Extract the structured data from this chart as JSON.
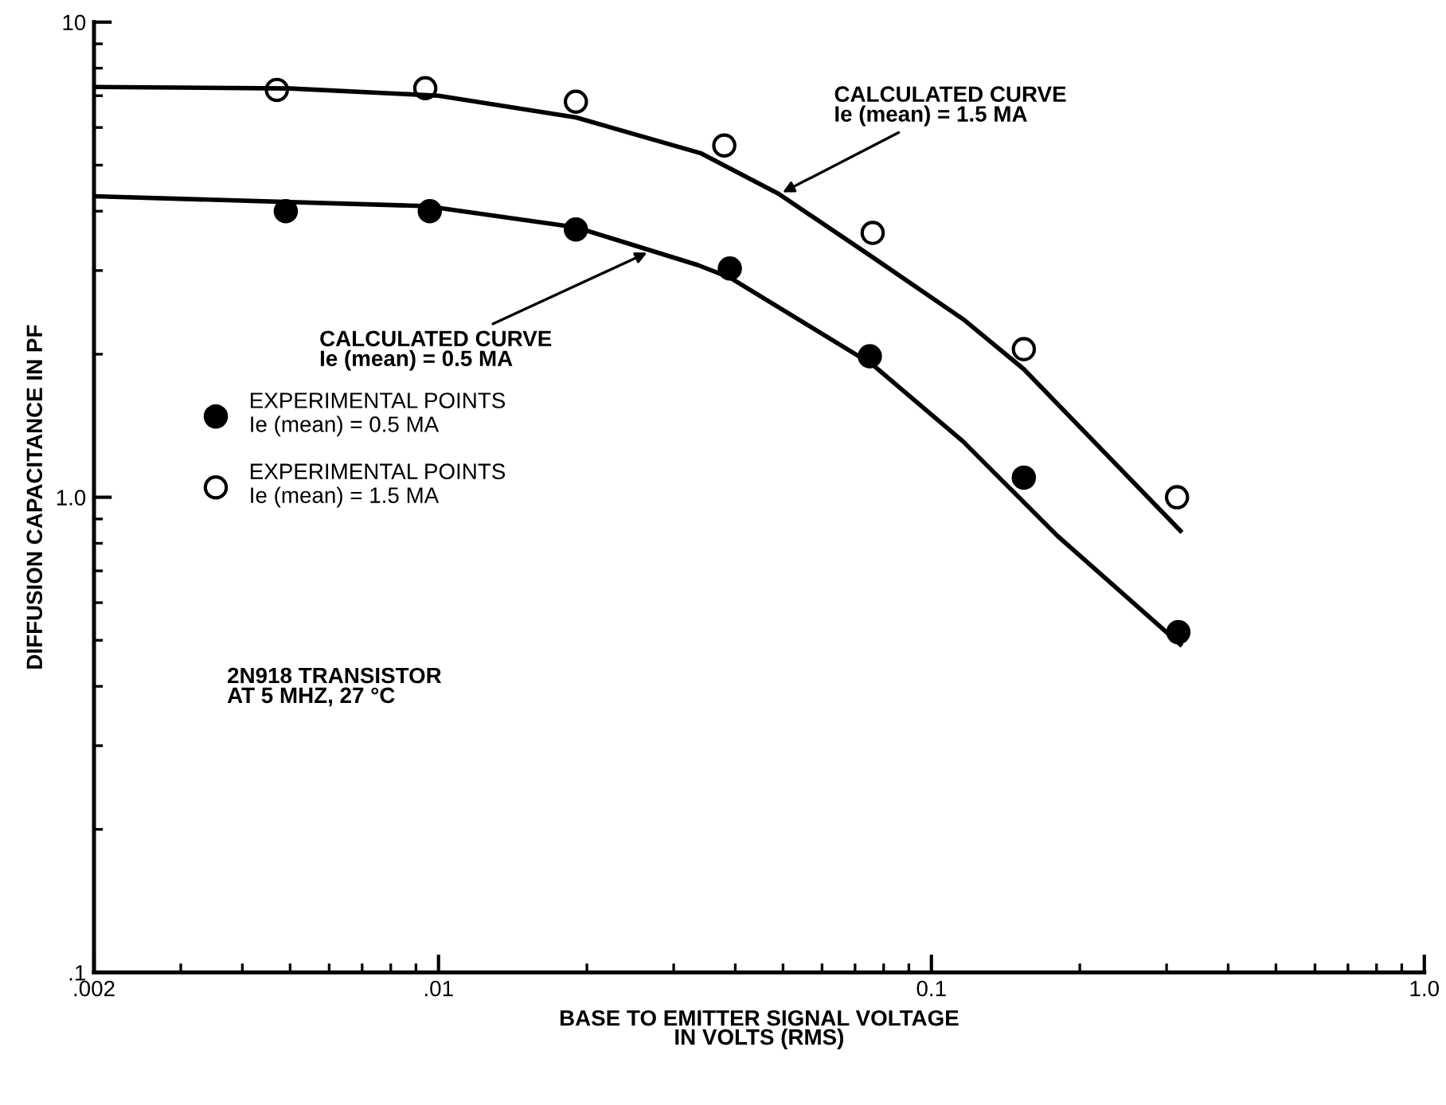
{
  "chart_data": {
    "type": "scatter",
    "xlabel": "BASE TO EMITTER SIGNAL VOLTAGE\nIN VOLTS (RMS)",
    "ylabel": "DIFFUSION CAPACITANCE IN PF",
    "log": "xy",
    "xlim": [
      0.002,
      1.0
    ],
    "ylim": [
      0.1,
      10
    ],
    "xticks": [
      {
        "value": 0.002,
        "label": ".002"
      },
      {
        "value": 0.01,
        "label": ".01"
      },
      {
        "value": 0.1,
        "label": "0.1"
      },
      {
        "value": 1.0,
        "label": "1.0"
      }
    ],
    "yticks": [
      {
        "value": 0.1,
        "label": ".1"
      },
      {
        "value": 1,
        "label": "1.0"
      },
      {
        "value": 10,
        "label": "10"
      }
    ],
    "grid": false,
    "legend": "left",
    "series": [
      {
        "type": "line",
        "color": "#000000",
        "x": [
          0.002,
          0.005,
          0.01,
          0.019,
          0.034,
          0.049,
          0.076,
          0.116,
          0.154,
          0.32
        ],
        "values": [
          7.3,
          7.25,
          7.0,
          6.3,
          5.3,
          4.35,
          3.2,
          2.37,
          1.86,
          0.85
        ]
      },
      {
        "type": "line",
        "color": "#000000",
        "x": [
          0.002,
          0.0094,
          0.019,
          0.0336,
          0.039,
          0.076,
          0.116,
          0.18,
          0.32
        ],
        "values": [
          4.3,
          4.1,
          3.7,
          3.08,
          2.9,
          1.9,
          1.31,
          0.83,
          0.49
        ]
      },
      {
        "type": "scatter",
        "marker": "circle",
        "name": "EXPERIMENTAL POINTS\nIe (mean) = 0.5 MA",
        "color": "#000000",
        "x": [
          0.0049,
          0.0096,
          0.019,
          0.039,
          0.075,
          0.154,
          0.317
        ],
        "values": [
          4.0,
          4.0,
          3.66,
          3.03,
          1.98,
          1.1,
          0.52
        ]
      },
      {
        "type": "scatter",
        "marker": "circle",
        "name": "EXPERIMENTAL POINTS\nIe (mean) = 1.5 MA",
        "color": "#ffffff",
        "x": [
          0.0047,
          0.0094,
          0.019,
          0.038,
          0.076,
          0.154,
          0.315
        ],
        "values": [
          7.2,
          7.26,
          6.8,
          5.5,
          3.6,
          2.05,
          1.0
        ]
      }
    ],
    "annotations": [
      {
        "text": "CALCULATED CURVE\nIe (mean) = 1.5 MA",
        "x": 0.049,
        "y": 4.34
      },
      {
        "text": "CALCULATED CURVE\nIe (mean) = 0.5 MA",
        "x": 0.027,
        "y": 3.3
      },
      "2N918 TRANSISTOR\nAT 5 MHZ, 27 °C"
    ]
  }
}
